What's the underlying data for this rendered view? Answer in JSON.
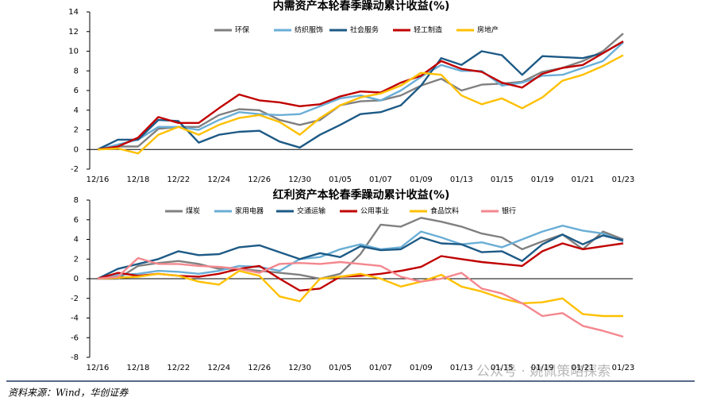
{
  "chart_data": [
    {
      "type": "line",
      "title": "内需资产本轮春季躁动累计收益(%)",
      "categories": [
        "12/16",
        null,
        "12/18",
        null,
        "12/22",
        null,
        "12/24",
        null,
        "12/26",
        null,
        "12/30",
        null,
        "01/05",
        null,
        "01/07",
        null,
        "01/09",
        null,
        "01/13",
        null,
        "01/15",
        null,
        "01/19",
        null,
        "01/21",
        null,
        "01/23"
      ],
      "ylim": [
        -2,
        14
      ],
      "yticks": [
        -2,
        0,
        2,
        4,
        6,
        8,
        10,
        12,
        14
      ],
      "grid": false,
      "legend": "top",
      "series": [
        {
          "name": "环保",
          "color": "#808080",
          "values": [
            0,
            0.3,
            0.3,
            2.1,
            2.3,
            2.3,
            3.5,
            4.1,
            4.0,
            3.0,
            2.5,
            3.0,
            4.5,
            4.9,
            5.0,
            5.5,
            6.5,
            7.2,
            6.0,
            6.6,
            6.7,
            6.9,
            7.9,
            8.3,
            9.0,
            10.0,
            11.8
          ]
        },
        {
          "name": "纺织服饰",
          "color": "#6aaed6",
          "values": [
            0,
            0.5,
            1.0,
            2.3,
            2.3,
            2.0,
            3.0,
            3.8,
            3.6,
            3.5,
            3.6,
            4.4,
            5.2,
            5.5,
            5.0,
            6.0,
            7.4,
            8.6,
            8.0,
            8.0,
            6.5,
            6.8,
            7.5,
            7.6,
            8.3,
            9.0,
            10.9
          ]
        },
        {
          "name": "社会服务",
          "color": "#1d5a86",
          "values": [
            0,
            1.0,
            1.0,
            3.0,
            2.9,
            0.7,
            1.5,
            1.8,
            1.9,
            0.8,
            0.2,
            1.5,
            2.5,
            3.6,
            3.8,
            4.5,
            6.5,
            9.3,
            8.6,
            10.0,
            9.6,
            7.6,
            9.5,
            9.4,
            9.3,
            9.8,
            11.0
          ]
        },
        {
          "name": "轻工制造",
          "color": "#c00000",
          "values": [
            0,
            0.3,
            1.2,
            3.3,
            2.7,
            2.7,
            4.2,
            5.6,
            5.0,
            4.8,
            4.4,
            4.6,
            5.4,
            5.9,
            5.8,
            6.8,
            7.5,
            9.0,
            8.2,
            7.9,
            6.8,
            6.3,
            7.7,
            8.3,
            8.6,
            9.8,
            11.0
          ]
        },
        {
          "name": "房地产",
          "color": "#ffc000",
          "values": [
            0,
            0.1,
            -0.4,
            1.5,
            2.3,
            1.5,
            2.5,
            3.2,
            3.5,
            2.8,
            1.5,
            3.2,
            4.5,
            5.3,
            5.7,
            6.5,
            7.8,
            7.6,
            5.5,
            4.6,
            5.2,
            4.2,
            5.3,
            7.0,
            7.6,
            8.5,
            9.6
          ]
        }
      ]
    },
    {
      "type": "line",
      "title": "红利资产本轮春季躁动累计收益(%)",
      "categories": [
        "12/16",
        null,
        "12/18",
        null,
        "12/22",
        null,
        "12/24",
        null,
        "12/26",
        null,
        "12/30",
        null,
        "01/05",
        null,
        "01/07",
        null,
        "01/09",
        null,
        "01/13",
        null,
        "01/15",
        null,
        "01/19",
        null,
        "01/21",
        null,
        "01/23"
      ],
      "ylim": [
        -8,
        8
      ],
      "yticks": [
        -8,
        -6,
        -4,
        -2,
        0,
        2,
        4,
        6,
        8
      ],
      "grid": false,
      "legend": "top",
      "series": [
        {
          "name": "煤炭",
          "color": "#808080",
          "values": [
            0,
            0,
            1.3,
            1.6,
            1.8,
            1.5,
            1.0,
            1.0,
            0.8,
            0.6,
            0.4,
            0,
            0.5,
            2.5,
            5.5,
            5.3,
            6.2,
            5.8,
            5.3,
            4.6,
            4.2,
            3.0,
            3.8,
            4.5,
            3.0,
            4.8,
            4.0
          ]
        },
        {
          "name": "家用电器",
          "color": "#6aaed6",
          "values": [
            0,
            0.4,
            0.5,
            0.8,
            0.7,
            0.5,
            0.8,
            1.3,
            1.2,
            0.8,
            2.0,
            2.2,
            3.0,
            3.5,
            3.0,
            3.2,
            4.8,
            4.2,
            3.5,
            3.7,
            3.2,
            4.0,
            4.8,
            5.4,
            4.9,
            4.6,
            3.8
          ]
        },
        {
          "name": "交通运输",
          "color": "#1d5a86",
          "values": [
            0,
            1.0,
            1.5,
            2.0,
            2.8,
            2.4,
            2.5,
            3.2,
            3.4,
            2.7,
            2.0,
            2.6,
            2.2,
            3.3,
            2.9,
            3.0,
            4.2,
            3.6,
            3.5,
            2.7,
            2.8,
            1.8,
            3.5,
            4.5,
            3.5,
            4.4,
            3.9
          ]
        },
        {
          "name": "公用事业",
          "color": "#c00000",
          "values": [
            0,
            0.6,
            0.3,
            0.5,
            0.3,
            0.2,
            0.5,
            1.0,
            1.3,
            0,
            -1.2,
            -1.0,
            0.2,
            0.3,
            0.5,
            0.8,
            1.2,
            2.3,
            2.0,
            1.7,
            1.5,
            1.3,
            2.8,
            3.6,
            3.0,
            3.3,
            3.6
          ]
        },
        {
          "name": "食品饮料",
          "color": "#ffc000",
          "values": [
            0,
            0.1,
            0.2,
            0.5,
            0.3,
            -0.3,
            -0.6,
            0.8,
            0.3,
            -1.8,
            -2.3,
            0,
            0.2,
            0.5,
            0.0,
            -0.8,
            -0.3,
            0.4,
            -0.8,
            -1.3,
            -2.0,
            -2.5,
            -2.4,
            -2.0,
            -3.6,
            -3.8,
            -3.8
          ]
        },
        {
          "name": "银行",
          "color": "#f4878e",
          "values": [
            0,
            0.2,
            2.1,
            1.5,
            1.5,
            1.3,
            1.2,
            1.0,
            0.6,
            1.5,
            1.6,
            1.5,
            1.7,
            1.5,
            1.3,
            0.2,
            -0.3,
            0.0,
            0.6,
            -1.0,
            -1.5,
            -2.5,
            -3.8,
            -3.5,
            -4.8,
            -5.3,
            -5.9
          ]
        }
      ]
    }
  ],
  "source": "资料来源：Wind，华创证券",
  "watermark": "公众号 · 姚佩策略探索"
}
